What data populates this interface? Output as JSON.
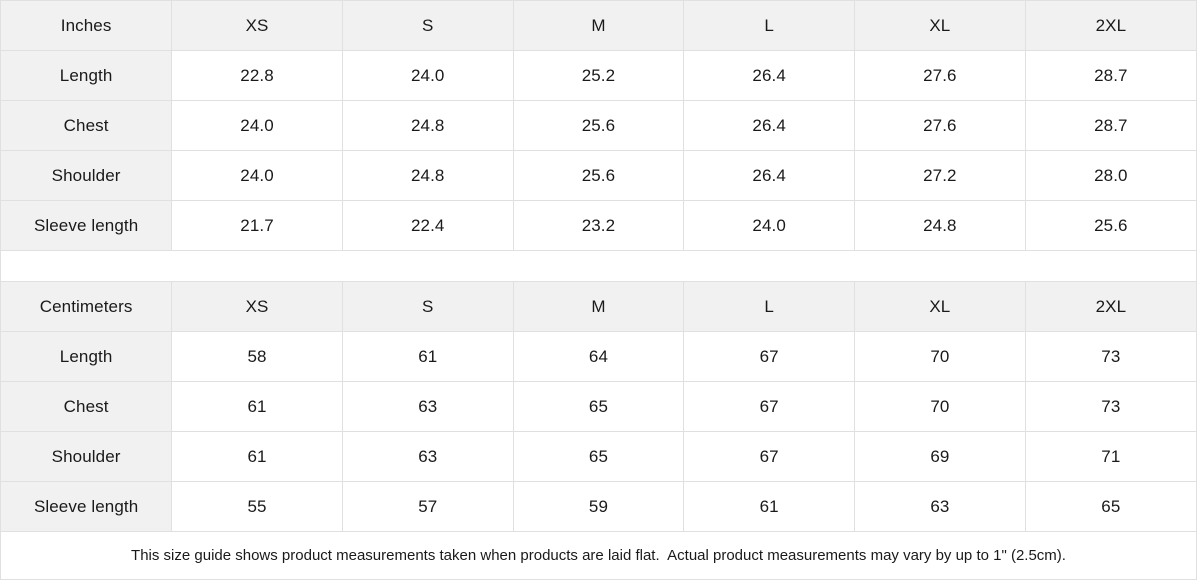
{
  "tables": [
    {
      "unit_label": "Inches",
      "sizes": [
        "XS",
        "S",
        "M",
        "L",
        "XL",
        "2XL"
      ],
      "rows": [
        {
          "label": "Length",
          "values": [
            "22.8",
            "24.0",
            "25.2",
            "26.4",
            "27.6",
            "28.7"
          ]
        },
        {
          "label": "Chest",
          "values": [
            "24.0",
            "24.8",
            "25.6",
            "26.4",
            "27.6",
            "28.7"
          ]
        },
        {
          "label": "Shoulder",
          "values": [
            "24.0",
            "24.8",
            "25.6",
            "26.4",
            "27.2",
            "28.0"
          ]
        },
        {
          "label": "Sleeve length",
          "values": [
            "21.7",
            "22.4",
            "23.2",
            "24.0",
            "24.8",
            "25.6"
          ]
        }
      ]
    },
    {
      "unit_label": "Centimeters",
      "sizes": [
        "XS",
        "S",
        "M",
        "L",
        "XL",
        "2XL"
      ],
      "rows": [
        {
          "label": "Length",
          "values": [
            "58",
            "61",
            "64",
            "67",
            "70",
            "73"
          ]
        },
        {
          "label": "Chest",
          "values": [
            "61",
            "63",
            "65",
            "67",
            "70",
            "73"
          ]
        },
        {
          "label": "Shoulder",
          "values": [
            "61",
            "63",
            "65",
            "67",
            "69",
            "71"
          ]
        },
        {
          "label": "Sleeve length",
          "values": [
            "55",
            "57",
            "59",
            "61",
            "63",
            "65"
          ]
        }
      ]
    }
  ],
  "footer_note": "This size guide shows product measurements taken when products are laid flat.  Actual product measurements may vary by up to 1\" (2.5cm).",
  "colors": {
    "header_bg": "#f1f1f1",
    "border": "#e0e0e0",
    "text": "#1a1a1a",
    "background": "#ffffff"
  }
}
